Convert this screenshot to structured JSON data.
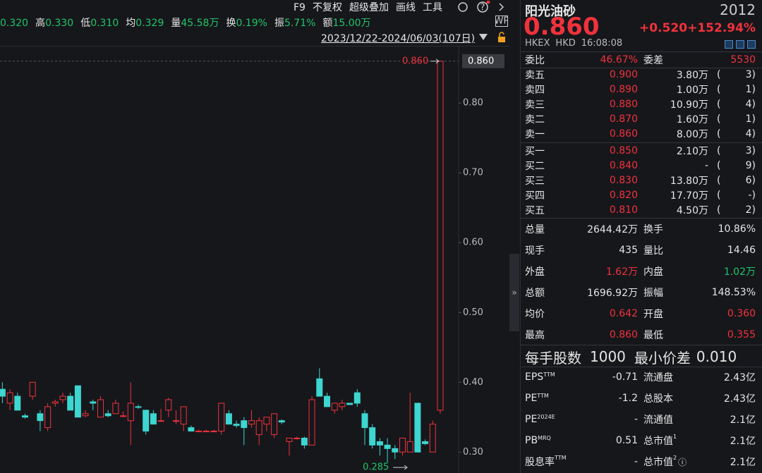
{
  "toolbar": {
    "stats": [
      {
        "value": "0.320"
      },
      {
        "label": "高",
        "value": "0.330"
      },
      {
        "label": "低",
        "value": "0.310"
      },
      {
        "label": "均",
        "value": "0.329"
      },
      {
        "label": "量",
        "value": "45.58万"
      },
      {
        "label": "换",
        "value": "0.19%"
      },
      {
        "label": "振",
        "value": "5.71%"
      },
      {
        "label": "额",
        "value": "15.00万"
      }
    ],
    "menu": [
      "F9",
      "不复权",
      "超级叠加",
      "画线",
      "工具"
    ],
    "range": "2023/12/22-2024/06/03(107日)"
  },
  "chart": {
    "type": "candlestick",
    "ylim": [
      0.27,
      0.882
    ],
    "yticks": [
      {
        "value": 0.3,
        "label": "0.30"
      },
      {
        "value": 0.4,
        "label": "0.40"
      },
      {
        "value": 0.5,
        "label": "0.50"
      },
      {
        "value": 0.6,
        "label": "0.60"
      },
      {
        "value": 0.7,
        "label": "0.70"
      },
      {
        "value": 0.8,
        "label": "0.80"
      }
    ],
    "last_price": {
      "value": 0.86,
      "label": "0.860"
    },
    "high_label": {
      "value": 0.86,
      "label": "0.860"
    },
    "low_label": {
      "value": 0.285,
      "label": "0.285"
    },
    "up_color": "#f0323c",
    "down_color": "#3dd6d0",
    "candles": [
      [
        0.39,
        0.4,
        0.37,
        0.38
      ],
      [
        0.37,
        0.39,
        0.36,
        0.385
      ],
      [
        0.38,
        0.385,
        0.36,
        0.36
      ],
      [
        0.352,
        0.355,
        0.348,
        0.35
      ],
      [
        0.38,
        0.4,
        0.375,
        0.4
      ],
      [
        0.355,
        0.36,
        0.33,
        0.345
      ],
      [
        0.335,
        0.37,
        0.33,
        0.365
      ],
      [
        0.37,
        0.375,
        0.365,
        0.372
      ],
      [
        0.375,
        0.385,
        0.37,
        0.38
      ],
      [
        0.38,
        0.385,
        0.36,
        0.36
      ],
      [
        0.395,
        0.395,
        0.35,
        0.35
      ],
      [
        0.352,
        0.36,
        0.35,
        0.355
      ],
      [
        0.372,
        0.375,
        0.36,
        0.37
      ],
      [
        0.35,
        0.38,
        0.35,
        0.375
      ],
      [
        0.355,
        0.36,
        0.35,
        0.352
      ],
      [
        0.355,
        0.375,
        0.355,
        0.37
      ],
      [
        0.352,
        0.358,
        0.35,
        0.352
      ],
      [
        0.345,
        0.4,
        0.31,
        0.37
      ],
      [
        0.365,
        0.368,
        0.362,
        0.364
      ],
      [
        0.36,
        0.36,
        0.325,
        0.33
      ],
      [
        0.355,
        0.36,
        0.34,
        0.34
      ],
      [
        0.345,
        0.362,
        0.345,
        0.345
      ],
      [
        0.36,
        0.378,
        0.35,
        0.375
      ],
      [
        0.345,
        0.36,
        0.34,
        0.345
      ],
      [
        0.34,
        0.365,
        0.33,
        0.365
      ],
      [
        0.335,
        0.338,
        0.33,
        0.33
      ],
      [
        0.33,
        0.332,
        0.33,
        0.33
      ],
      [
        0.33,
        0.332,
        0.33,
        0.33
      ],
      [
        0.33,
        0.332,
        0.33,
        0.33
      ],
      [
        0.33,
        0.37,
        0.325,
        0.37
      ],
      [
        0.355,
        0.36,
        0.34,
        0.34
      ],
      [
        0.34,
        0.345,
        0.335,
        0.338
      ],
      [
        0.345,
        0.35,
        0.31,
        0.335
      ],
      [
        0.34,
        0.36,
        0.335,
        0.345
      ],
      [
        0.325,
        0.35,
        0.31,
        0.345
      ],
      [
        0.34,
        0.35,
        0.33,
        0.35
      ],
      [
        0.325,
        0.355,
        0.32,
        0.355
      ],
      [
        0.345,
        0.347,
        0.34,
        0.343
      ],
      [
        0.315,
        0.32,
        0.295,
        0.32
      ],
      [
        0.32,
        0.322,
        0.318,
        0.32
      ],
      [
        0.32,
        0.322,
        0.305,
        0.31
      ],
      [
        0.31,
        0.38,
        0.31,
        0.375
      ],
      [
        0.405,
        0.42,
        0.38,
        0.38
      ],
      [
        0.38,
        0.385,
        0.365,
        0.365
      ],
      [
        0.36,
        0.37,
        0.355,
        0.37
      ],
      [
        0.365,
        0.375,
        0.36,
        0.37
      ],
      [
        0.37,
        0.37,
        0.368,
        0.368
      ],
      [
        0.385,
        0.39,
        0.365,
        0.37
      ],
      [
        0.355,
        0.36,
        0.31,
        0.335
      ],
      [
        0.335,
        0.34,
        0.305,
        0.31
      ],
      [
        0.315,
        0.32,
        0.295,
        0.31
      ],
      [
        0.31,
        0.32,
        0.285,
        0.305
      ],
      [
        0.305,
        0.31,
        0.29,
        0.3
      ],
      [
        0.3,
        0.32,
        0.295,
        0.32
      ],
      [
        0.3,
        0.385,
        0.3,
        0.315
      ],
      [
        0.37,
        0.37,
        0.3,
        0.3
      ],
      [
        0.315,
        0.318,
        0.31,
        0.312
      ],
      [
        0.3,
        0.345,
        0.3,
        0.34
      ],
      [
        0.36,
        0.86,
        0.355,
        0.86
      ]
    ]
  },
  "quote": {
    "name": "阳光油砂",
    "code": "2012",
    "price": "0.860",
    "change": "+0.520",
    "change_pct": "+152.94%",
    "market": "HKEX",
    "currency": "HKD",
    "time": "16:08:08",
    "ratio": {
      "label": "委比",
      "value": "46.67%",
      "label2": "委差",
      "value2": "5530"
    },
    "asks": [
      [
        "卖五",
        "0.900",
        "3.80万",
        3
      ],
      [
        "卖四",
        "0.890",
        "1.00万",
        1
      ],
      [
        "卖三",
        "0.880",
        "10.90万",
        4
      ],
      [
        "卖二",
        "0.870",
        "1.60万",
        1
      ],
      [
        "卖一",
        "0.860",
        "8.00万",
        4
      ]
    ],
    "bids": [
      [
        "买一",
        "0.850",
        "2.10万",
        3
      ],
      [
        "买二",
        "0.840",
        "-",
        9
      ],
      [
        "买三",
        "0.830",
        "13.80万",
        6
      ],
      [
        "买四",
        "0.820",
        "17.70万",
        "-"
      ],
      [
        "买五",
        "0.810",
        "4.50万",
        2
      ]
    ],
    "stats": [
      {
        "l1": "总量",
        "v1": "2644.42万",
        "c1": "#e6e6e6",
        "l2": "换手",
        "v2": "10.86%",
        "c2": "#e6e6e6"
      },
      {
        "l1": "现手",
        "v1": "435",
        "c1": "#e6e6e6",
        "l2": "量比",
        "v2": "14.46",
        "c2": "#e6e6e6"
      },
      {
        "l1": "外盘",
        "v1": "1.62万",
        "c1": "#f0323c",
        "l2": "内盘",
        "v2": "1.02万",
        "c2": "#1fc46a"
      },
      {
        "l1": "总额",
        "v1": "1696.92万",
        "c1": "#e6e6e6",
        "l2": "振幅",
        "v2": "148.53%",
        "c2": "#e6e6e6"
      },
      {
        "l1": "均价",
        "v1": "0.642",
        "c1": "#f0323c",
        "l2": "开盘",
        "v2": "0.360",
        "c2": "#f0323c"
      },
      {
        "l1": "最高",
        "v1": "0.860",
        "c1": "#f0323c",
        "l2": "最低",
        "v2": "0.355",
        "c2": "#f0323c"
      }
    ],
    "lot": {
      "label": "每手股数",
      "value": "1000",
      "label2": "最小价差",
      "value2": "0.010"
    },
    "fundamentals": [
      {
        "l1": "EPS",
        "s1": "TTM",
        "v1": "-0.71",
        "l2": "流通盘",
        "v2": "2.43亿"
      },
      {
        "l1": "PE",
        "s1": "TTM",
        "v1": "-1.2",
        "l2": "总股本",
        "v2": "2.43亿"
      },
      {
        "l1": "PE",
        "s1": "2024E",
        "v1": "-",
        "l2": "流通值",
        "v2": "2.1亿"
      },
      {
        "l1": "PB",
        "s1": "MRQ",
        "v1": "0.51",
        "l2": "总市值",
        "s2": "1",
        "v2": "2.1亿"
      },
      {
        "l1": "股息率",
        "s1": "TTM",
        "v1": "-",
        "l2": "总市值",
        "s2": "2",
        "v2": "2.1亿"
      }
    ]
  }
}
